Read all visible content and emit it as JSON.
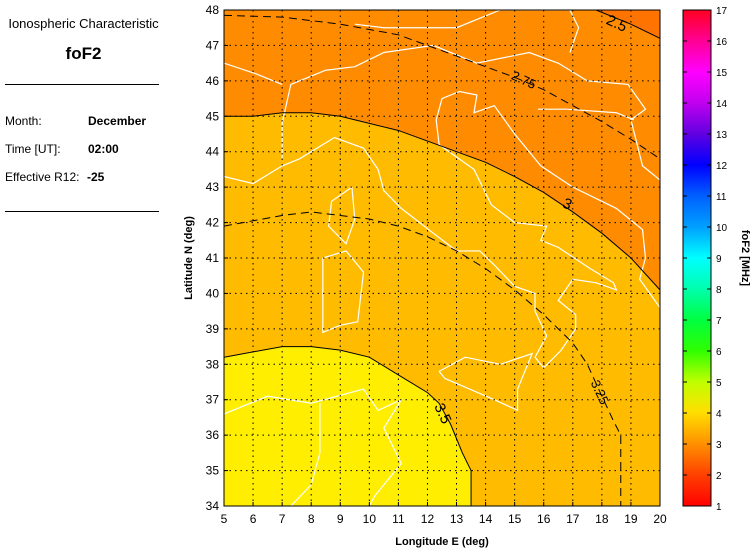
{
  "panel": {
    "heading": "Ionospheric Characteristic",
    "parameter": "foF2",
    "rows": [
      {
        "label": "Month:",
        "value": "December"
      },
      {
        "label": "Time [UT]:",
        "value": "02:00"
      },
      {
        "label": "Effective R12:",
        "value": "-25"
      }
    ]
  },
  "chart_data": {
    "type": "heatmap",
    "subtype": "filled contour map",
    "xlabel": "Longitude E (deg)",
    "ylabel": "Latitude N (deg)",
    "xlim": [
      5,
      20
    ],
    "ylim": [
      34,
      48
    ],
    "xticks": [
      "5",
      "6",
      "7",
      "8",
      "9",
      "10",
      "11",
      "12",
      "13",
      "14",
      "15",
      "16",
      "17",
      "18",
      "19",
      "20"
    ],
    "yticks": [
      "34",
      "35",
      "36",
      "37",
      "38",
      "39",
      "40",
      "41",
      "42",
      "43",
      "44",
      "45",
      "46",
      "47",
      "48"
    ],
    "grid": true,
    "colorbar": {
      "label": "foF2 [MHz]",
      "range": [
        1,
        17
      ],
      "ticks": [
        "1",
        "2",
        "3",
        "4",
        "5",
        "6",
        "7",
        "8",
        "9",
        "10",
        "11",
        "12",
        "13",
        "14",
        "15",
        "16",
        "17"
      ]
    },
    "fill_colors": {
      "below_2.5": "#ff7400",
      "2.5_3.0": "#ff8c00",
      "3.0_3.5": "#ffbb00",
      "above_3.5": "#ffee00"
    },
    "contours": [
      {
        "level": "2.5",
        "style": "solid",
        "points": [
          [
            17.8,
            48
          ],
          [
            19,
            47.6
          ],
          [
            20,
            47.2
          ]
        ],
        "label_at": [
          18.5,
          47.6
        ]
      },
      {
        "level": "2.75",
        "style": "dashed",
        "points": [
          [
            5,
            47.85
          ],
          [
            7,
            47.8
          ],
          [
            9,
            47.6
          ],
          [
            10,
            47.45
          ],
          [
            11,
            47.3
          ],
          [
            12,
            47.0
          ],
          [
            13,
            46.7
          ],
          [
            14,
            46.4
          ],
          [
            15,
            46.1
          ],
          [
            16,
            45.75
          ],
          [
            17,
            45.3
          ],
          [
            18,
            44.85
          ],
          [
            19,
            44.35
          ],
          [
            20,
            43.8
          ]
        ],
        "label_at": [
          15.3,
          46.0
        ]
      },
      {
        "level": "3",
        "style": "solid",
        "points": [
          [
            5,
            45
          ],
          [
            6,
            45
          ],
          [
            7,
            45.1
          ],
          [
            8,
            45.1
          ],
          [
            9,
            45.0
          ],
          [
            10,
            44.8
          ],
          [
            11,
            44.6
          ],
          [
            12,
            44.3
          ],
          [
            13,
            44.0
          ],
          [
            14,
            43.7
          ],
          [
            15,
            43.3
          ],
          [
            16,
            42.85
          ],
          [
            17,
            42.3
          ],
          [
            18,
            41.7
          ],
          [
            19,
            41.0
          ],
          [
            20,
            40.1
          ]
        ],
        "label_at": [
          16.8,
          42.5
        ]
      },
      {
        "level": "3.25",
        "style": "dashed",
        "points": [
          [
            5,
            41.9
          ],
          [
            6,
            42.05
          ],
          [
            7,
            42.2
          ],
          [
            8,
            42.3
          ],
          [
            9,
            42.2
          ],
          [
            10,
            42.1
          ],
          [
            11,
            41.9
          ],
          [
            12,
            41.6
          ],
          [
            13,
            41.2
          ],
          [
            14,
            40.7
          ],
          [
            15,
            40.1
          ],
          [
            16,
            39.4
          ],
          [
            17,
            38.6
          ],
          [
            17.5,
            38.0
          ],
          [
            18,
            37.1
          ],
          [
            18.4,
            36.4
          ],
          [
            18.65,
            36
          ],
          [
            18.65,
            34
          ]
        ],
        "label_at": [
          17.9,
          37.2
        ]
      },
      {
        "level": "3.5",
        "style": "solid",
        "points": [
          [
            5,
            38.2
          ],
          [
            6,
            38.35
          ],
          [
            7,
            38.5
          ],
          [
            8,
            38.5
          ],
          [
            9,
            38.4
          ],
          [
            10,
            38.2
          ],
          [
            11,
            37.7
          ],
          [
            12,
            37.2
          ],
          [
            12.4,
            36.9
          ],
          [
            12.8,
            36.3
          ],
          [
            13.2,
            35.5
          ],
          [
            13.5,
            35
          ],
          [
            13.5,
            34
          ]
        ],
        "label_at": [
          12.5,
          36.6
        ]
      }
    ]
  }
}
